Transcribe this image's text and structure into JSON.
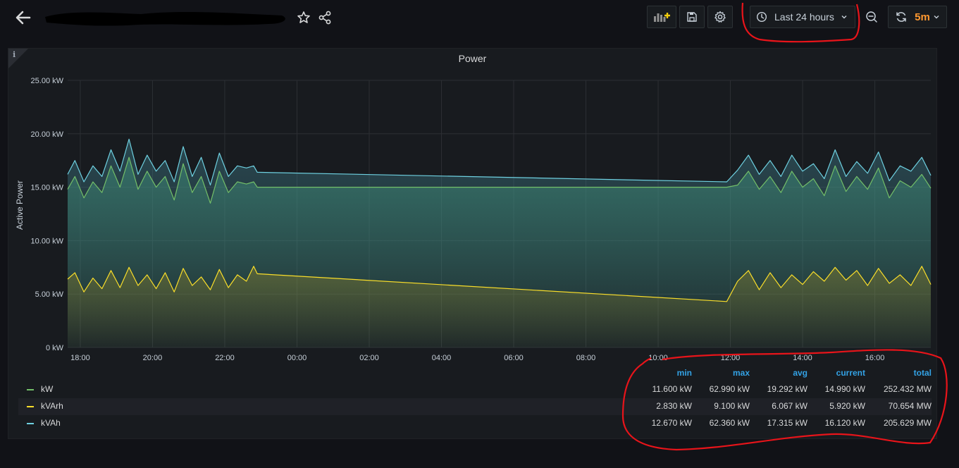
{
  "topbar": {
    "title": "",
    "time_range_label": "Last 24 hours",
    "refresh_interval": "5m",
    "accent_color": "#ff9830"
  },
  "panel": {
    "title": "Power",
    "info_label": "i"
  },
  "chart_data": {
    "type": "line",
    "ylabel": "Active Power",
    "y_ticks": [
      "25.00 kW",
      "20.00 kW",
      "15.00 kW",
      "10.00 kW",
      "5.00 kW",
      "0 kW"
    ],
    "ylim": [
      0,
      25
    ],
    "x_ticks": [
      "18:00",
      "20:00",
      "22:00",
      "00:00",
      "02:00",
      "04:00",
      "06:00",
      "08:00",
      "10:00",
      "12:00",
      "14:00",
      "16:00"
    ],
    "xlim_hours": [
      17.65,
      41.55
    ],
    "grid": true,
    "series": [
      {
        "name": "kVAh",
        "color": "#6ed0e0",
        "fill": true,
        "x": [
          17.65,
          17.85,
          18.1,
          18.35,
          18.6,
          18.85,
          19.1,
          19.35,
          19.6,
          19.85,
          20.1,
          20.35,
          20.6,
          20.85,
          21.1,
          21.35,
          21.6,
          21.85,
          22.1,
          22.35,
          22.6,
          22.8,
          22.9,
          35.9,
          36.2,
          36.5,
          36.8,
          37.1,
          37.4,
          37.7,
          38.0,
          38.3,
          38.6,
          38.9,
          39.2,
          39.5,
          39.8,
          40.1,
          40.4,
          40.7,
          41.0,
          41.3,
          41.55
        ],
        "y": [
          16.2,
          17.5,
          15.5,
          17.0,
          16.0,
          18.5,
          16.5,
          19.5,
          16.2,
          18.0,
          16.5,
          17.5,
          15.5,
          18.8,
          16.0,
          17.8,
          15.2,
          18.2,
          16.0,
          17.0,
          16.8,
          17.0,
          16.4,
          15.5,
          16.6,
          18.0,
          16.2,
          17.5,
          16.0,
          18.0,
          16.5,
          17.2,
          15.8,
          18.5,
          16.0,
          17.4,
          16.3,
          18.3,
          15.6,
          17.0,
          16.5,
          17.8,
          16.1
        ]
      },
      {
        "name": "kW",
        "color": "#73bf69",
        "fill": true,
        "x": [
          17.65,
          17.85,
          18.1,
          18.35,
          18.6,
          18.85,
          19.1,
          19.35,
          19.6,
          19.85,
          20.1,
          20.35,
          20.6,
          20.85,
          21.1,
          21.35,
          21.6,
          21.85,
          22.1,
          22.35,
          22.6,
          22.8,
          22.9,
          35.9,
          36.2,
          36.5,
          36.8,
          37.1,
          37.4,
          37.7,
          38.0,
          38.3,
          38.6,
          38.9,
          39.2,
          39.5,
          39.8,
          40.1,
          40.4,
          40.7,
          41.0,
          41.3,
          41.55
        ],
        "y": [
          14.8,
          16.0,
          14.0,
          15.5,
          14.5,
          17.0,
          15.0,
          17.8,
          14.8,
          16.5,
          15.0,
          16.0,
          13.8,
          17.2,
          14.5,
          16.0,
          13.5,
          16.5,
          14.5,
          15.5,
          15.3,
          15.5,
          15.0,
          15.0,
          15.2,
          16.5,
          14.8,
          16.0,
          14.5,
          16.5,
          15.0,
          15.8,
          14.2,
          17.0,
          14.6,
          16.0,
          14.8,
          16.8,
          14.0,
          15.6,
          15.0,
          16.2,
          14.9
        ]
      },
      {
        "name": "kVArh",
        "color": "#fade2a",
        "fill": true,
        "x": [
          17.65,
          17.85,
          18.1,
          18.35,
          18.6,
          18.85,
          19.1,
          19.35,
          19.6,
          19.85,
          20.1,
          20.35,
          20.6,
          20.85,
          21.1,
          21.35,
          21.6,
          21.85,
          22.1,
          22.35,
          22.6,
          22.8,
          22.9,
          35.9,
          36.2,
          36.5,
          36.8,
          37.1,
          37.4,
          37.7,
          38.0,
          38.3,
          38.6,
          38.9,
          39.2,
          39.5,
          39.8,
          40.1,
          40.4,
          40.7,
          41.0,
          41.3,
          41.55
        ],
        "y": [
          6.4,
          7.0,
          5.2,
          6.5,
          5.5,
          7.2,
          5.6,
          7.5,
          5.8,
          6.8,
          5.5,
          7.0,
          5.2,
          7.4,
          5.8,
          6.6,
          5.4,
          7.3,
          5.6,
          6.8,
          6.2,
          7.6,
          6.9,
          4.3,
          6.2,
          7.2,
          5.4,
          7.0,
          5.6,
          6.8,
          5.9,
          7.1,
          6.2,
          7.5,
          6.3,
          7.2,
          5.8,
          7.4,
          6.0,
          6.8,
          5.8,
          7.6,
          5.9
        ]
      }
    ]
  },
  "legend": {
    "headers": [
      "min",
      "max",
      "avg",
      "current",
      "total"
    ],
    "rows": [
      {
        "name": "kW",
        "color": "#73bf69",
        "values": [
          "11.600 kW",
          "62.990 kW",
          "19.292 kW",
          "14.990 kW",
          "252.432 MW"
        ]
      },
      {
        "name": "kVArh",
        "color": "#fade2a",
        "values": [
          "2.830 kW",
          "9.100 kW",
          "6.067 kW",
          "5.920 kW",
          "70.654 MW"
        ]
      },
      {
        "name": "kVAh",
        "color": "#6ed0e0",
        "values": [
          "12.670 kW",
          "62.360 kW",
          "17.315 kW",
          "16.120 kW",
          "205.629 MW"
        ]
      }
    ]
  },
  "icons": {
    "back": "arrow-left-icon",
    "star": "star-icon",
    "share": "share-icon",
    "add_panel": "add-panel-icon",
    "save": "save-icon",
    "settings": "gear-icon",
    "clock": "clock-icon",
    "zoom_out": "zoom-out-icon",
    "refresh": "refresh-icon"
  }
}
